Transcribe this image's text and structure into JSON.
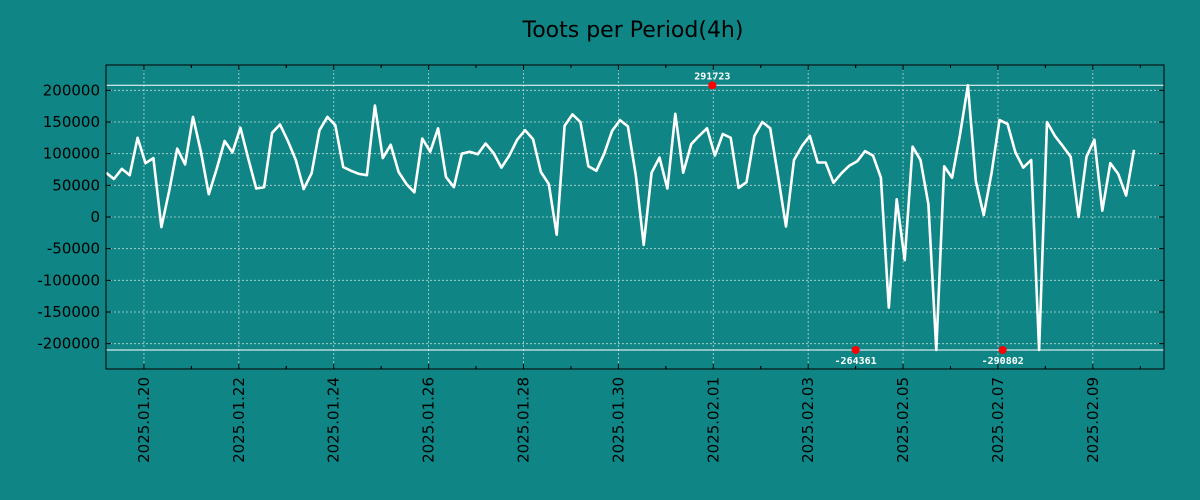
{
  "colors": {
    "background": "#108585",
    "line": "#ffffff",
    "grid": "#b8d8d8",
    "marker": "#ff0000",
    "axis": "#000000"
  },
  "chart_data": {
    "type": "line",
    "title": "Toots per Period(4h)",
    "xlabel": "",
    "ylabel": "",
    "grid": true,
    "xlim": [
      -0.8,
      21.5
    ],
    "ylim": [
      -240000,
      240000
    ],
    "x_ticks": [
      {
        "pos": 0,
        "label": "2025.01.20"
      },
      {
        "pos": 2,
        "label": "2025.01.22"
      },
      {
        "pos": 4,
        "label": "2025.01.24"
      },
      {
        "pos": 6,
        "label": "2025.01.26"
      },
      {
        "pos": 8,
        "label": "2025.01.28"
      },
      {
        "pos": 10,
        "label": "2025.01.30"
      },
      {
        "pos": 12,
        "label": "2025.02.01"
      },
      {
        "pos": 14,
        "label": "2025.02.03"
      },
      {
        "pos": 16,
        "label": "2025.02.05"
      },
      {
        "pos": 18,
        "label": "2025.02.07"
      },
      {
        "pos": 20,
        "label": "2025.02.09"
      }
    ],
    "y_ticks": [
      {
        "value": 200000,
        "label": "200000"
      },
      {
        "value": 150000,
        "label": "150000"
      },
      {
        "value": 100000,
        "label": "100000"
      },
      {
        "value": 50000,
        "label": "50000"
      },
      {
        "value": 0,
        "label": "0"
      },
      {
        "value": -50000,
        "label": "-50000"
      },
      {
        "value": -100000,
        "label": "-100000"
      },
      {
        "value": -150000,
        "label": "-150000"
      },
      {
        "value": -200000,
        "label": "-200000"
      }
    ],
    "reference_lines": [
      208000,
      -210000
    ],
    "series": [
      {
        "name": "Toots",
        "x_start": -0.8,
        "x_step": 0.16667,
        "values": [
          70000,
          60000,
          76000,
          66000,
          125000,
          85000,
          93000,
          -16000,
          42000,
          108000,
          83000,
          158000,
          103000,
          36000,
          76000,
          120000,
          102000,
          141000,
          92000,
          45000,
          47000,
          133000,
          146000,
          120000,
          90000,
          44000,
          69000,
          137000,
          158000,
          145000,
          79000,
          73000,
          68000,
          66000,
          176000,
          93000,
          114000,
          71000,
          52000,
          39000,
          124000,
          103000,
          140000,
          63000,
          47000,
          100000,
          103000,
          99000,
          116000,
          101000,
          78000,
          97000,
          122000,
          137000,
          123000,
          71000,
          52000,
          -28000,
          144000,
          162000,
          150000,
          80000,
          73000,
          100000,
          136000,
          153000,
          143000,
          66000,
          -44000,
          70000,
          94000,
          45000,
          163000,
          70000,
          115000,
          128000,
          140000,
          97000,
          131000,
          125000,
          46000,
          55000,
          128000,
          150000,
          140000,
          64000,
          -15000,
          90000,
          112000,
          128000,
          86000,
          86000,
          54000,
          69000,
          81000,
          88000,
          104000,
          97000,
          62000,
          -143000,
          28000,
          -68000,
          111000,
          90000,
          20000,
          -210000,
          80000,
          62000,
          130000,
          208000,
          57000,
          3000,
          70000,
          153000,
          147000,
          102000,
          78000,
          90000,
          -210000,
          150000,
          128000,
          112000,
          95000,
          0,
          95000,
          122000,
          10000,
          85000,
          68000,
          34000,
          106000
        ]
      }
    ],
    "annotations": [
      {
        "label": "291723",
        "x": 11.98,
        "y": 208000,
        "position": "above"
      },
      {
        "label": "-264361",
        "x": 15.0,
        "y": -210000,
        "position": "below"
      },
      {
        "label": "-290802",
        "x": 18.1,
        "y": -210000,
        "position": "below"
      }
    ]
  }
}
